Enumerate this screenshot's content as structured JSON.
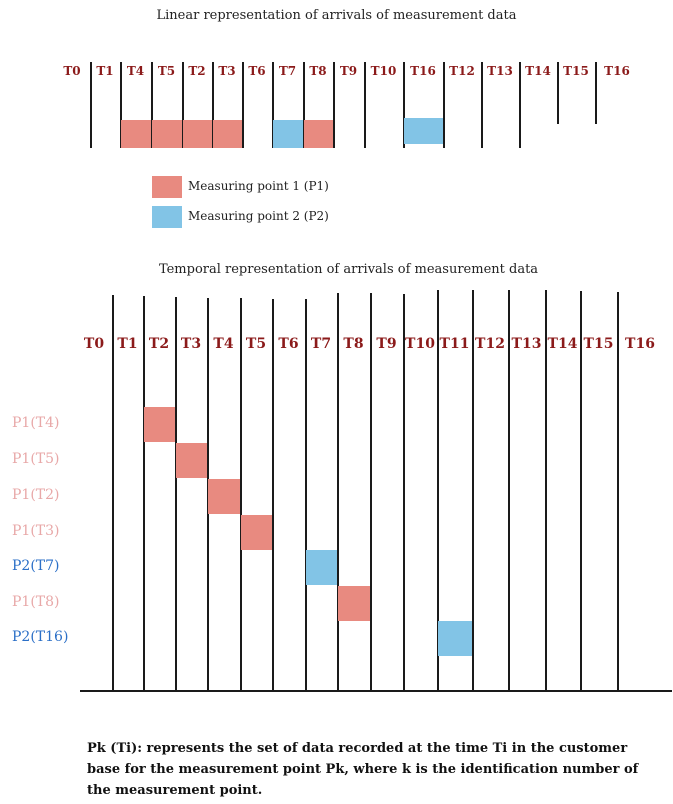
{
  "colors": {
    "p1": "#e88a80",
    "p2": "#82c4e6",
    "p1_label": "#e8a8a8",
    "p2_label": "#2b6fc7",
    "time_label": "#8b1a1a"
  },
  "linear": {
    "title": "Linear representation of arrivals of measurement data",
    "labels": [
      "T0",
      "T1",
      "T4",
      "T5",
      "T2",
      "T3",
      "T6",
      "T7",
      "T8",
      "T9",
      "T10",
      "T16",
      "T12",
      "T13",
      "T14",
      "T15",
      "T16"
    ],
    "filled": [
      {
        "slot": 2,
        "point": "p1"
      },
      {
        "slot": 3,
        "point": "p1"
      },
      {
        "slot": 4,
        "point": "p1"
      },
      {
        "slot": 5,
        "point": "p1"
      },
      {
        "slot": 7,
        "point": "p2"
      },
      {
        "slot": 8,
        "point": "p1"
      },
      {
        "slot": 11,
        "point": "p2"
      }
    ]
  },
  "legend": [
    {
      "label": "Measuring point 1 (P1)",
      "point": "p1"
    },
    {
      "label": "Measuring point 2 (P2)",
      "point": "p2"
    }
  ],
  "temporal": {
    "title": "Temporal representation of arrivals of measurement data",
    "labels": [
      "T0",
      "T1",
      "T2",
      "T3",
      "T4",
      "T5",
      "T6",
      "T7",
      "T8",
      "T9",
      "T10",
      "T11",
      "T12",
      "T13",
      "T14",
      "T15",
      "T16"
    ],
    "rows": [
      {
        "label": "P1(T4)",
        "point": "p1",
        "slot": 2
      },
      {
        "label": "P1(T5)",
        "point": "p1",
        "slot": 3
      },
      {
        "label": "P1(T2)",
        "point": "p1",
        "slot": 4
      },
      {
        "label": "P1(T3)",
        "point": "p1",
        "slot": 5
      },
      {
        "label": "P2(T7)",
        "point": "p2",
        "slot": 7
      },
      {
        "label": "P1(T8)",
        "point": "p1",
        "slot": 8
      },
      {
        "label": "P2(T16)",
        "point": "p2",
        "slot": 11
      }
    ]
  },
  "footnote": "Pk (Ti): represents the set of data recorded at the time Ti in the customer base for the measurement point Pk, where k is the identification number of the measurement point."
}
